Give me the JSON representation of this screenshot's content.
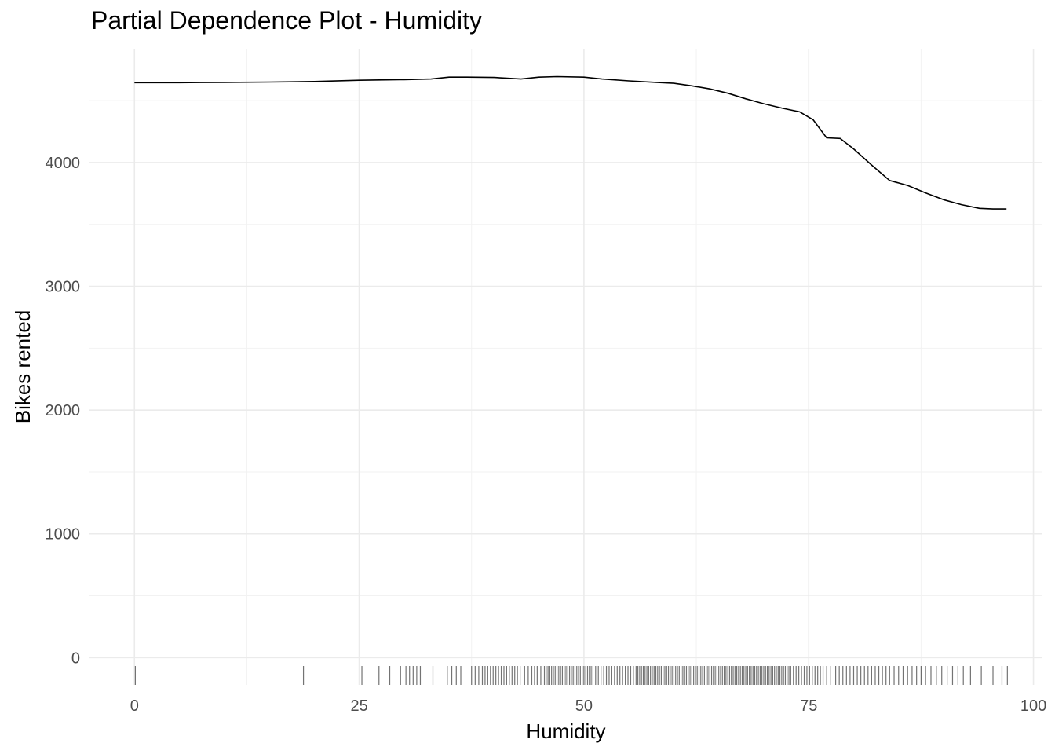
{
  "chart_data": {
    "type": "line",
    "title": "Partial Dependence Plot - Humidity",
    "xlabel": "Humidity",
    "ylabel": "Bikes rented",
    "xlim": [
      -5,
      101
    ],
    "ylim": [
      -220,
      4920
    ],
    "x_ticks": [
      0,
      25,
      50,
      75,
      100
    ],
    "y_ticks": [
      0,
      1000,
      2000,
      3000,
      4000
    ],
    "grid": true,
    "series": [
      {
        "x": [
          0,
          5,
          10,
          15,
          20,
          25,
          30,
          33,
          35,
          37,
          40,
          43,
          45,
          47,
          50,
          52,
          55,
          58,
          60,
          62,
          64,
          66,
          68,
          70,
          72,
          74,
          75.5,
          77,
          78.5,
          80,
          82,
          84,
          86,
          88,
          90,
          92,
          94,
          95.5,
          97
        ],
        "y": [
          4645,
          4645,
          4648,
          4650,
          4655,
          4665,
          4670,
          4675,
          4690,
          4690,
          4688,
          4675,
          4690,
          4695,
          4690,
          4675,
          4660,
          4648,
          4640,
          4620,
          4595,
          4560,
          4515,
          4475,
          4440,
          4410,
          4345,
          4200,
          4195,
          4110,
          3980,
          3855,
          3815,
          3755,
          3700,
          3660,
          3630,
          3625,
          3625
        ],
        "color": "#000000"
      }
    ],
    "rug": [
      0.1,
      18.8,
      25.3,
      27.2,
      28.4,
      29.6,
      30.2,
      30.6,
      31.0,
      31.4,
      31.8,
      33.2,
      34.8,
      35.3,
      35.8,
      36.3,
      37.5,
      37.9,
      38.3,
      38.7,
      39.0,
      39.3,
      39.6,
      39.9,
      40.2,
      40.5,
      40.8,
      41.1,
      41.4,
      41.7,
      42.0,
      42.3,
      42.6,
      42.9,
      43.4,
      43.8,
      44.2,
      44.5,
      44.8,
      45.2,
      45.6,
      45.8,
      46.0,
      46.2,
      46.4,
      46.6,
      46.8,
      47.0,
      47.2,
      47.4,
      47.6,
      47.8,
      48.0,
      48.2,
      48.4,
      48.6,
      48.8,
      49.0,
      49.2,
      49.4,
      49.6,
      49.8,
      50.0,
      50.2,
      50.4,
      50.6,
      50.8,
      51.0,
      51.3,
      51.6,
      51.9,
      52.2,
      52.5,
      52.8,
      53.1,
      53.4,
      53.7,
      54.0,
      54.3,
      54.6,
      54.9,
      55.2,
      55.5,
      55.8,
      56.0,
      56.2,
      56.4,
      56.6,
      56.8,
      57.0,
      57.2,
      57.4,
      57.6,
      57.8,
      58.0,
      58.2,
      58.4,
      58.6,
      58.8,
      59.0,
      59.2,
      59.4,
      59.6,
      59.8,
      60.0,
      60.2,
      60.4,
      60.6,
      60.8,
      61.0,
      61.2,
      61.4,
      61.6,
      61.8,
      62.0,
      62.2,
      62.4,
      62.6,
      62.8,
      63.0,
      63.2,
      63.4,
      63.6,
      63.8,
      64.0,
      64.2,
      64.4,
      64.6,
      64.8,
      65.0,
      65.2,
      65.4,
      65.6,
      65.8,
      66.0,
      66.2,
      66.4,
      66.6,
      66.8,
      67.0,
      67.2,
      67.4,
      67.6,
      67.8,
      68.0,
      68.2,
      68.4,
      68.6,
      68.8,
      69.0,
      69.2,
      69.4,
      69.6,
      69.8,
      70.0,
      70.2,
      70.4,
      70.6,
      70.8,
      71.0,
      71.2,
      71.4,
      71.6,
      71.8,
      72.0,
      72.2,
      72.4,
      72.6,
      72.8,
      73.0,
      73.3,
      73.6,
      73.9,
      74.2,
      74.5,
      74.8,
      75.1,
      75.4,
      75.7,
      76.0,
      76.3,
      76.6,
      77.0,
      77.4,
      78.0,
      78.4,
      78.8,
      79.2,
      79.6,
      80.0,
      80.4,
      80.8,
      81.2,
      81.6,
      82.0,
      82.4,
      82.8,
      83.2,
      83.6,
      84.0,
      84.5,
      85.0,
      85.5,
      86.0,
      86.5,
      87.0,
      87.5,
      88.0,
      88.6,
      89.2,
      89.8,
      90.4,
      91.0,
      91.6,
      92.2,
      93.0,
      94.2,
      95.5,
      96.5,
      97.1
    ]
  }
}
